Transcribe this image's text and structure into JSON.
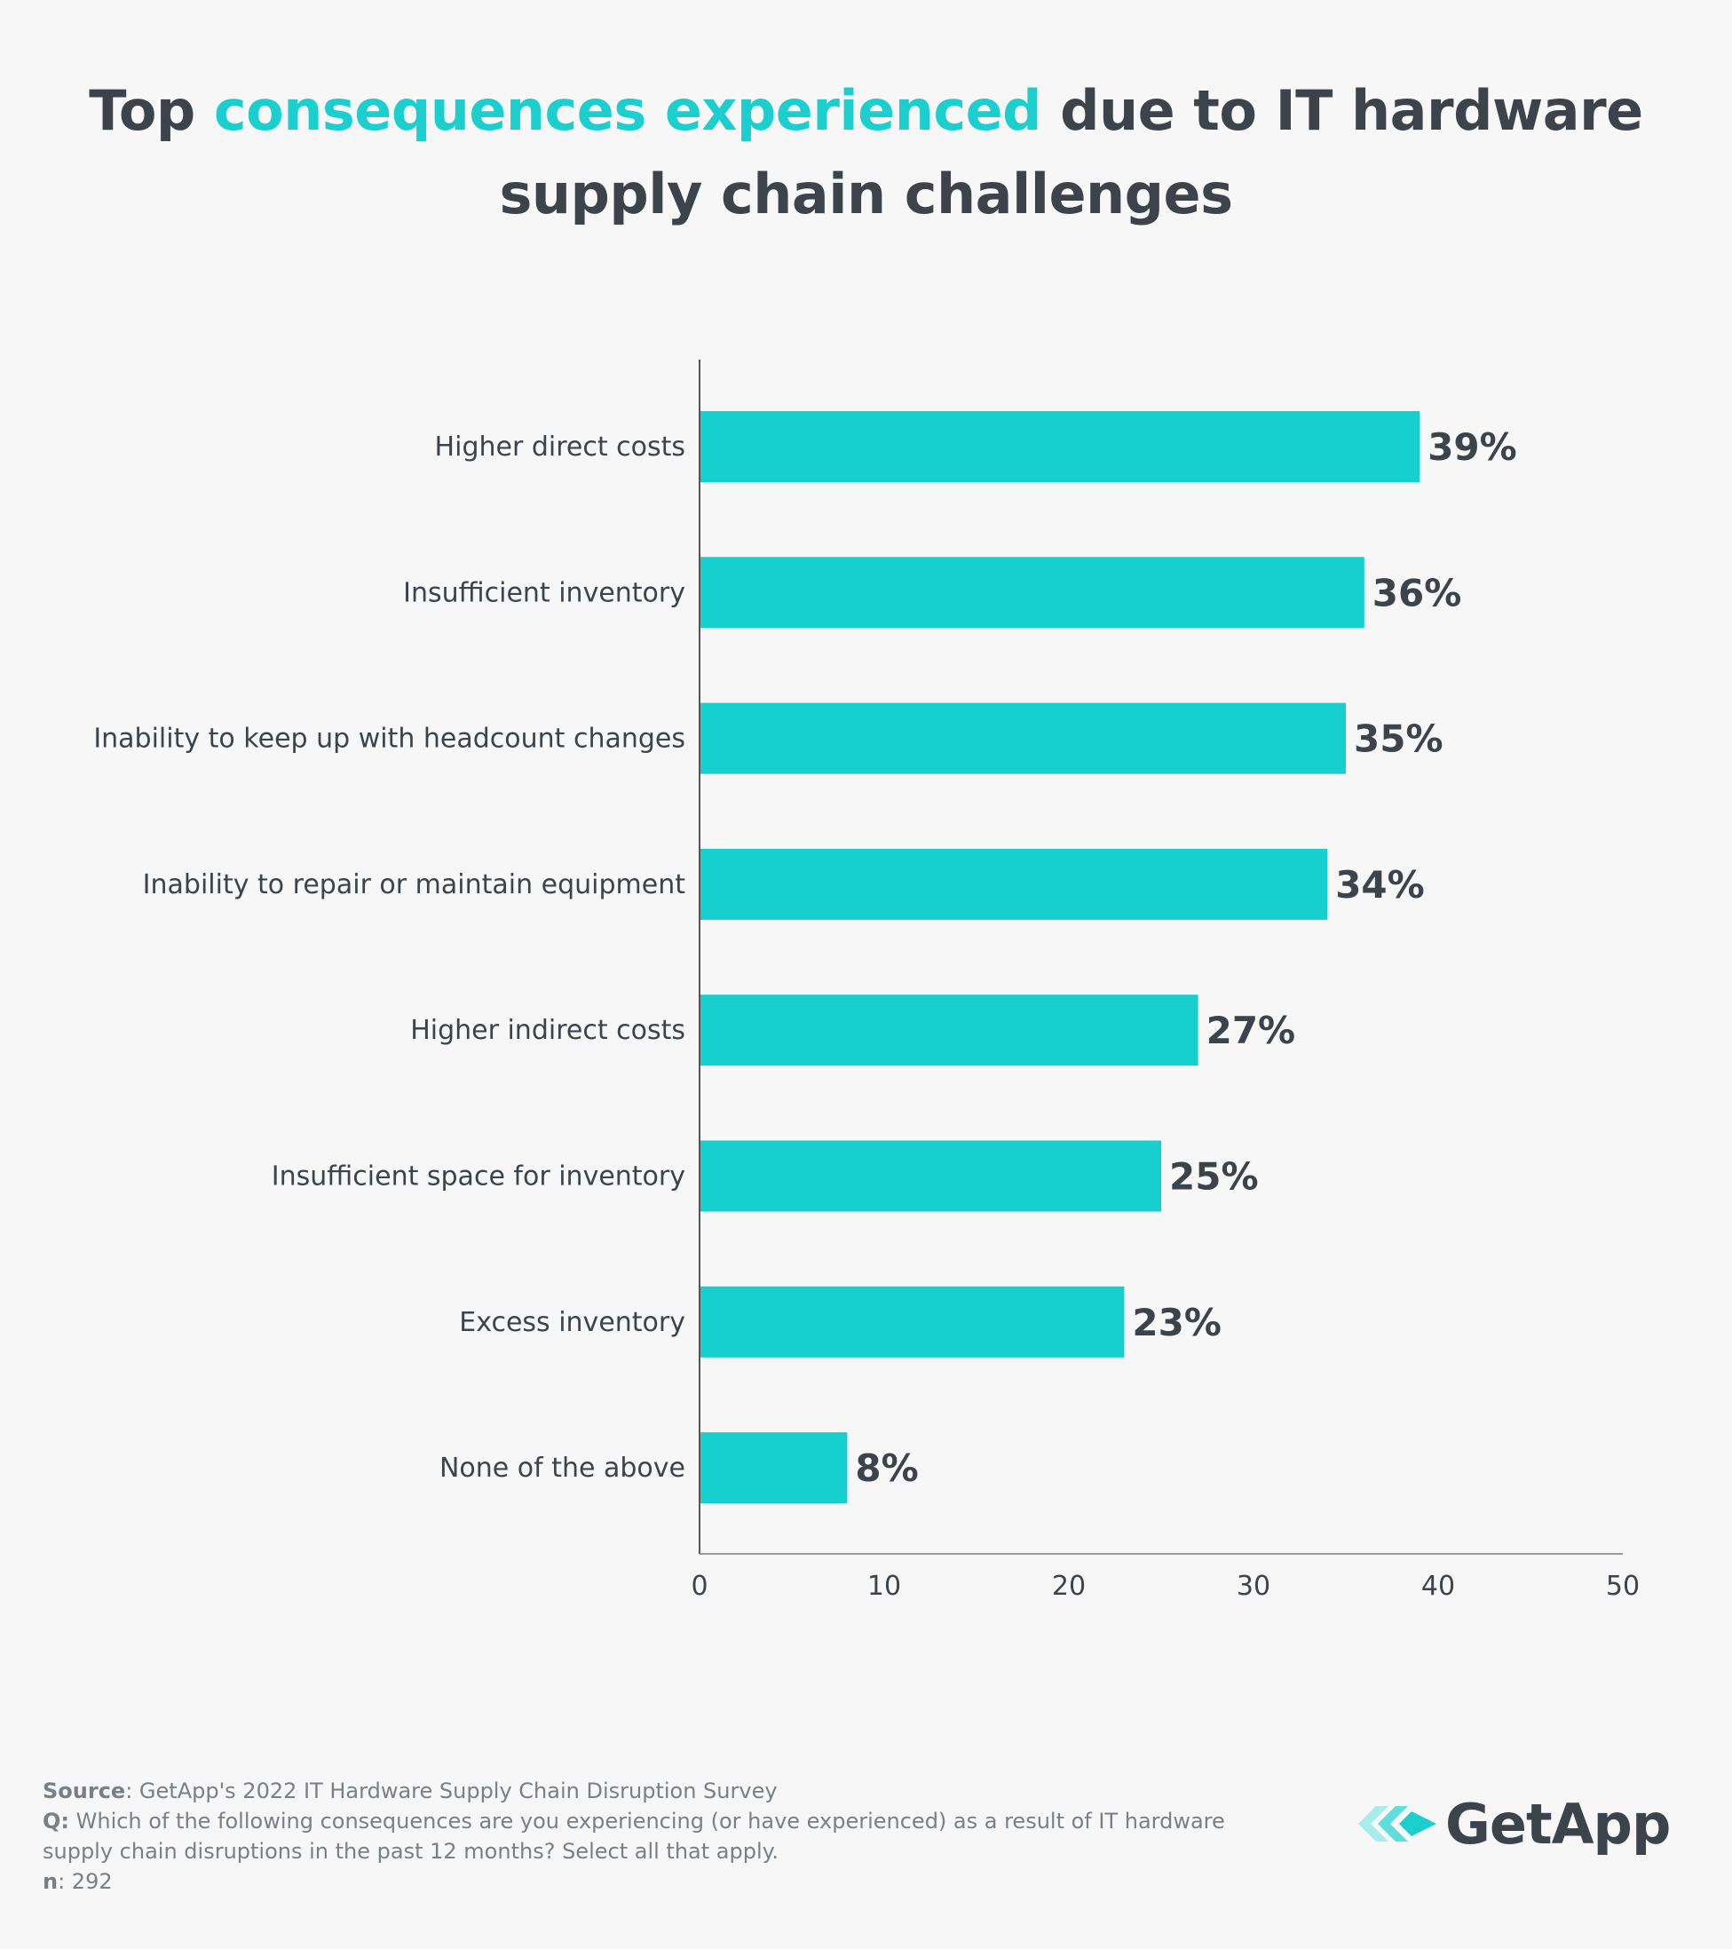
{
  "title": {
    "prefix": "Top ",
    "highlight": "consequences experienced",
    "suffix": " due to IT hardware supply chain challenges"
  },
  "colors": {
    "bar": "#18cfcf",
    "highlight": "#1ccfcf",
    "text": "#3d434b",
    "footer": "#7a7f86",
    "axis": "#555555"
  },
  "chart_data": {
    "type": "bar",
    "orientation": "horizontal",
    "title": "Top consequences experienced due to IT hardware supply chain challenges",
    "categories": [
      "Higher direct costs",
      "Insufficient inventory",
      "Inability to keep up with headcount changes",
      "Inability to repair or maintain equipment",
      "Higher indirect costs",
      "Insufficient space for inventory",
      "Excess inventory",
      "None of the above"
    ],
    "values": [
      39,
      36,
      35,
      34,
      27,
      25,
      23,
      8
    ],
    "value_labels": [
      "39%",
      "36%",
      "35%",
      "34%",
      "27%",
      "25%",
      "23%",
      "8%"
    ],
    "xlim": [
      0,
      50
    ],
    "xticks": [
      "0",
      "10",
      "20",
      "30",
      "40",
      "50"
    ],
    "xlabel": "",
    "ylabel": "",
    "grid": false
  },
  "footer": {
    "source_label": "Source",
    "source_text": ": GetApp's 2022 IT Hardware Supply Chain Disruption Survey",
    "q_label": "Q:",
    "q_text": " Which of the following consequences are you experiencing (or have experienced) as a result of IT hardware",
    "q_text_2": "supply chain disruptions in the past 12 months? Select all that apply.",
    "n_label": "n",
    "n_text": ": 292"
  },
  "logo": {
    "text": "GetApp",
    "icon": "getapp-chevrons-icon"
  }
}
